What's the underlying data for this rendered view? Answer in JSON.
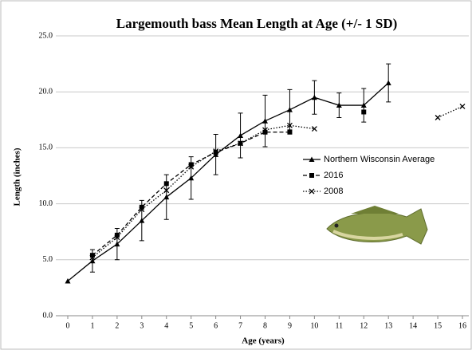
{
  "chart_data": {
    "type": "line",
    "title": "Largemouth bass Mean Length at Age (+/- 1 SD)",
    "x_label": "Age (years)",
    "y_label": "Length (inches)",
    "x": [
      0,
      1,
      2,
      3,
      4,
      5,
      6,
      7,
      8,
      9,
      10,
      11,
      12,
      13,
      14,
      15,
      16
    ],
    "xlim": [
      0,
      16
    ],
    "xticks": [
      0,
      1,
      2,
      3,
      4,
      5,
      6,
      7,
      8,
      9,
      10,
      11,
      12,
      13,
      14,
      15,
      16
    ],
    "ylim": [
      0,
      25
    ],
    "yticks": [
      {
        "value": 0,
        "label": "0.0"
      },
      {
        "value": 5,
        "label": "5.0"
      },
      {
        "value": 10,
        "label": "10.0"
      },
      {
        "value": 15,
        "label": "15.0"
      },
      {
        "value": 20,
        "label": "20.0"
      },
      {
        "value": 25,
        "label": "25.0"
      }
    ],
    "grid": true,
    "legend": "right",
    "series": [
      {
        "name": "Northern Wisconsin Average",
        "color": "#000000",
        "line_style": "solid",
        "marker": "triangle",
        "values": [
          3.1,
          4.9,
          6.4,
          8.5,
          10.6,
          12.3,
          14.4,
          16.1,
          17.4,
          18.4,
          19.5,
          18.8,
          18.8,
          20.8,
          null,
          null,
          null
        ],
        "errors": [
          null,
          1.0,
          1.4,
          1.8,
          2.0,
          1.9,
          1.8,
          2.0,
          2.3,
          1.8,
          1.5,
          1.1,
          1.5,
          1.7,
          null,
          null,
          null
        ]
      },
      {
        "name": "2016",
        "color": "#000000",
        "line_style": "dashed",
        "marker": "square",
        "values": [
          null,
          5.4,
          7.2,
          9.7,
          11.8,
          13.5,
          14.6,
          15.4,
          16.4,
          16.4,
          null,
          null,
          18.2,
          null,
          null,
          null,
          null
        ]
      },
      {
        "name": "2008",
        "color": "#000000",
        "line_style": "dotted",
        "marker": "x",
        "values": [
          null,
          5.2,
          7.0,
          9.5,
          11.2,
          13.3,
          14.7,
          15.4,
          16.6,
          17.0,
          16.7,
          null,
          null,
          null,
          null,
          17.7,
          18.7
        ]
      }
    ]
  }
}
